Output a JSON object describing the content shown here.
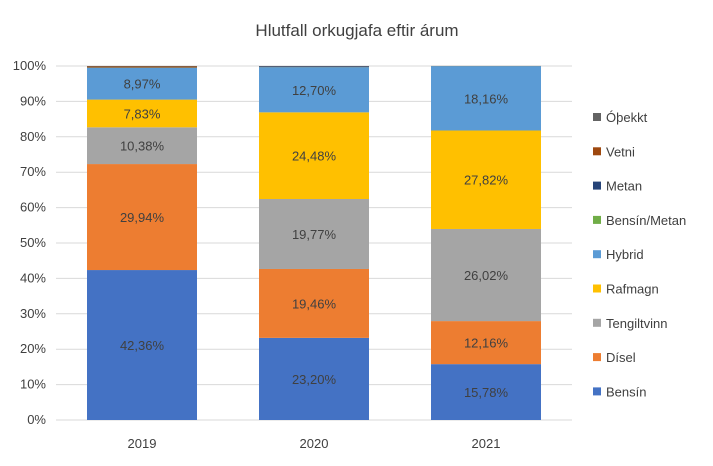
{
  "chart_data": {
    "type": "bar",
    "stacked": true,
    "title": "Hlutfall orkugjafa eftir árum",
    "categories": [
      "2019",
      "2020",
      "2021"
    ],
    "ylim": [
      0,
      100
    ],
    "y_ticks": [
      "0%",
      "10%",
      "20%",
      "30%",
      "40%",
      "50%",
      "60%",
      "70%",
      "80%",
      "90%",
      "100%"
    ],
    "grid": true,
    "legend_position": "right",
    "series": [
      {
        "name": "Bensín",
        "color": "#4472C4",
        "values": [
          42.36,
          23.2,
          15.78
        ],
        "labels": [
          "42,36%",
          "23,20%",
          "15,78%"
        ]
      },
      {
        "name": "Dísel",
        "color": "#ED7D31",
        "values": [
          29.94,
          19.46,
          12.16
        ],
        "labels": [
          "29,94%",
          "19,46%",
          "12,16%"
        ]
      },
      {
        "name": "Tengiltvinn",
        "color": "#A5A5A5",
        "values": [
          10.38,
          19.77,
          26.02
        ],
        "labels": [
          "10,38%",
          "19,77%",
          "26,02%"
        ]
      },
      {
        "name": "Rafmagn",
        "color": "#FFC000",
        "values": [
          7.83,
          24.48,
          27.82
        ],
        "labels": [
          "7,83%",
          "24,48%",
          "27,82%"
        ]
      },
      {
        "name": "Hybrid",
        "color": "#5B9BD5",
        "values": [
          8.97,
          12.7,
          18.16
        ],
        "labels": [
          "8,97%",
          "12,70%",
          "18,16%"
        ]
      },
      {
        "name": "Bensín/Metan",
        "color": "#70AD47",
        "values": [
          0.05,
          0.05,
          0.02
        ],
        "labels": [
          "",
          "",
          ""
        ]
      },
      {
        "name": "Metan",
        "color": "#264478",
        "values": [
          0.05,
          0.2,
          0.04
        ],
        "labels": [
          "",
          "",
          ""
        ]
      },
      {
        "name": "Vetni",
        "color": "#9E480E",
        "values": [
          0.3,
          0.04,
          0.01
        ],
        "labels": [
          "",
          "",
          ""
        ]
      },
      {
        "name": "Óþekkt",
        "color": "#636363",
        "values": [
          0.12,
          0.1,
          0.01
        ],
        "labels": [
          "",
          "",
          ""
        ]
      }
    ]
  }
}
